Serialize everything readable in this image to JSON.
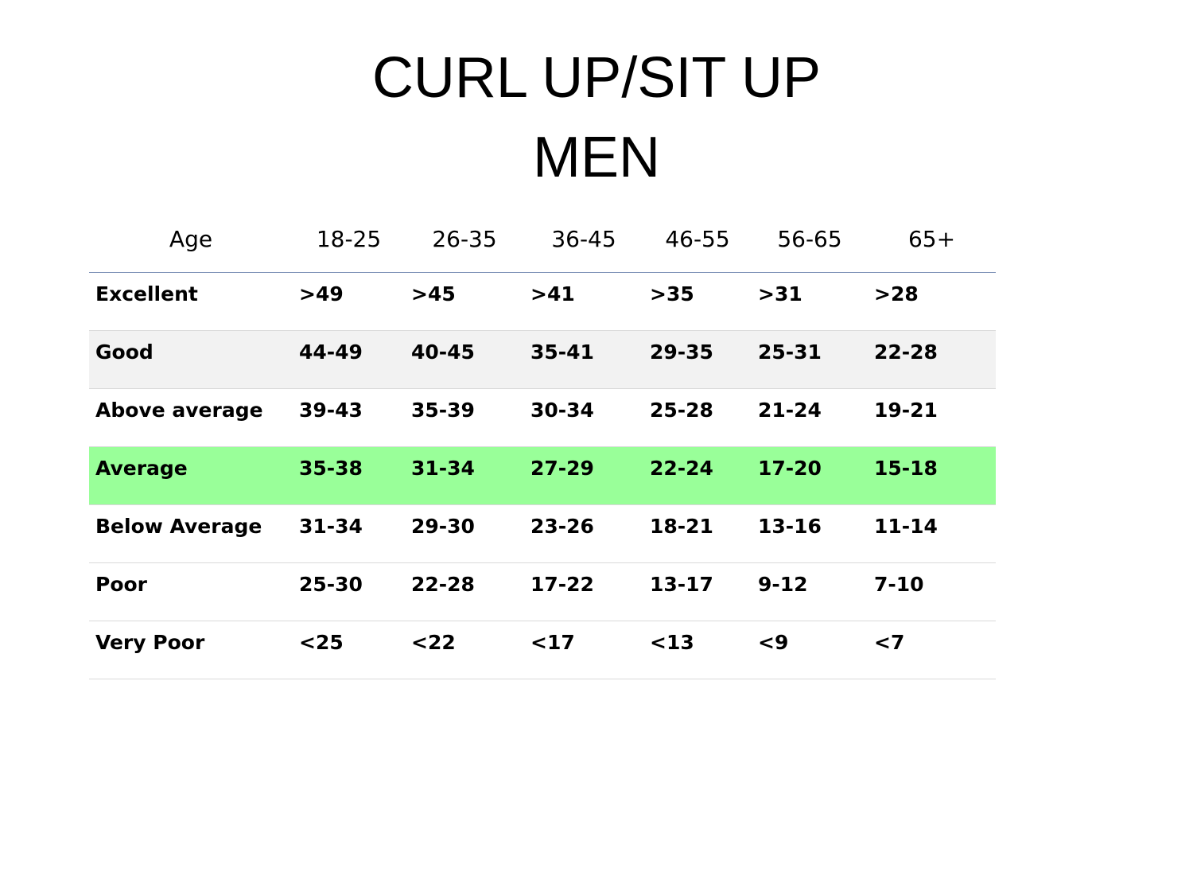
{
  "title": {
    "line1": "CURL UP/SIT UP",
    "line2": "MEN"
  },
  "table": {
    "headers": [
      "Age",
      "18-25",
      "26-35",
      "36-45",
      "46-55",
      "56-65",
      "65+"
    ],
    "rows": [
      {
        "label": "Excellent",
        "values": [
          ">49",
          ">45",
          ">41",
          ">35",
          ">31",
          ">28"
        ]
      },
      {
        "label": "Good",
        "values": [
          "44-49",
          "40-45",
          "35-41",
          "29-35",
          "25-31",
          "22-28"
        ]
      },
      {
        "label": "Above average",
        "values": [
          "39-43",
          "35-39",
          "30-34",
          "25-28",
          "21-24",
          "19-21"
        ]
      },
      {
        "label": "Average",
        "values": [
          "35-38",
          "31-34",
          "27-29",
          "22-24",
          "17-20",
          "15-18"
        ]
      },
      {
        "label": "Below Average",
        "values": [
          "31-34",
          "29-30",
          "23-26",
          "18-21",
          "13-16",
          "11-14"
        ]
      },
      {
        "label": "Poor",
        "values": [
          "25-30",
          "22-28",
          "17-22",
          "13-17",
          "9-12",
          "7-10"
        ]
      },
      {
        "label": "Very Poor",
        "values": [
          "<25",
          "<22",
          "<17",
          "<13",
          "<9",
          "<7"
        ]
      }
    ]
  },
  "colors": {
    "highlight_row": "#99ff99",
    "shaded_row": "#f2f2f2",
    "header_rule": "#7f93b8"
  }
}
